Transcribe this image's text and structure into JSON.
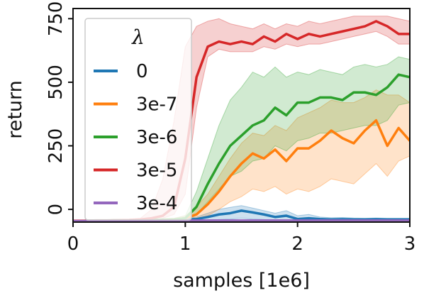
{
  "chart_data": {
    "type": "line",
    "xlabel": "samples [1e6]",
    "ylabel": "return",
    "xlim": [
      0,
      3
    ],
    "ylim": [
      -50,
      790
    ],
    "xticks": [
      "0",
      "1",
      "2",
      "3"
    ],
    "yticks": [
      "0",
      "250",
      "500",
      "750"
    ],
    "grid": false,
    "legend": {
      "title": "λ",
      "placement": "top-left"
    },
    "series": [
      {
        "name": "0",
        "color": "#1f77b4",
        "x": [
          0,
          0.1,
          0.2,
          0.3,
          0.4,
          0.5,
          0.6,
          0.7,
          0.8,
          0.9,
          1.0,
          1.1,
          1.2,
          1.3,
          1.4,
          1.5,
          1.6,
          1.7,
          1.8,
          1.9,
          2.0,
          2.1,
          2.2,
          2.3,
          2.4,
          2.5,
          2.6,
          2.7,
          2.8,
          2.9,
          3.0
        ],
        "y": [
          -45,
          -45,
          -44,
          -44,
          -43,
          -43,
          -42,
          -42,
          -41,
          -41,
          -40,
          -38,
          -30,
          -20,
          -15,
          -5,
          -12,
          -20,
          -30,
          -25,
          -38,
          -35,
          -38,
          -40,
          -39,
          -40,
          -40,
          -39,
          -40,
          -40,
          -40
        ],
        "lower": [
          -48,
          -48,
          -48,
          -48,
          -47,
          -47,
          -47,
          -47,
          -46,
          -46,
          -45,
          -44,
          -42,
          -40,
          -38,
          -35,
          -38,
          -40,
          -42,
          -42,
          -44,
          -44,
          -44,
          -44,
          -44,
          -44,
          -44,
          -44,
          -44,
          -44,
          -44
        ],
        "upper": [
          -42,
          -42,
          -40,
          -40,
          -39,
          -39,
          -38,
          -38,
          -37,
          -36,
          -33,
          -30,
          -15,
          0,
          8,
          15,
          5,
          -5,
          -15,
          -5,
          -25,
          -20,
          -30,
          -33,
          -32,
          -34,
          -35,
          -34,
          -35,
          -35,
          -35
        ]
      },
      {
        "name": "3e-7",
        "color": "#ff7f0e",
        "x": [
          0,
          0.1,
          0.2,
          0.3,
          0.4,
          0.5,
          0.6,
          0.7,
          0.8,
          0.9,
          1.0,
          1.1,
          1.2,
          1.3,
          1.4,
          1.5,
          1.6,
          1.7,
          1.8,
          1.9,
          2.0,
          2.1,
          2.2,
          2.3,
          2.4,
          2.5,
          2.6,
          2.7,
          2.8,
          2.9,
          3.0
        ],
        "y": [
          -45,
          -45,
          -44,
          -44,
          -43,
          -43,
          -42,
          -42,
          -41,
          -40,
          -35,
          -20,
          20,
          70,
          130,
          180,
          220,
          200,
          235,
          190,
          240,
          240,
          270,
          310,
          280,
          260,
          310,
          350,
          250,
          320,
          270
        ],
        "lower": [
          -48,
          -48,
          -48,
          -48,
          -47,
          -47,
          -46,
          -46,
          -45,
          -45,
          -44,
          -40,
          -25,
          0,
          30,
          50,
          80,
          70,
          90,
          60,
          80,
          70,
          90,
          120,
          110,
          100,
          140,
          180,
          130,
          190,
          210
        ],
        "upper": [
          -42,
          -42,
          -40,
          -40,
          -39,
          -39,
          -38,
          -38,
          -37,
          -35,
          -25,
          10,
          60,
          130,
          200,
          260,
          300,
          290,
          330,
          310,
          360,
          380,
          400,
          430,
          420,
          420,
          440,
          470,
          450,
          450,
          420
        ]
      },
      {
        "name": "3e-6",
        "color": "#2ca02c",
        "x": [
          0,
          0.1,
          0.2,
          0.3,
          0.4,
          0.5,
          0.6,
          0.7,
          0.8,
          0.9,
          1.0,
          1.1,
          1.2,
          1.3,
          1.4,
          1.5,
          1.6,
          1.7,
          1.8,
          1.9,
          2.0,
          2.1,
          2.2,
          2.3,
          2.4,
          2.5,
          2.6,
          2.7,
          2.8,
          2.9,
          3.0
        ],
        "y": [
          -45,
          -45,
          -44,
          -44,
          -43,
          -43,
          -42,
          -42,
          -41,
          -40,
          -35,
          10,
          100,
          180,
          250,
          290,
          330,
          350,
          400,
          370,
          420,
          420,
          440,
          440,
          430,
          460,
          460,
          450,
          480,
          530,
          520
        ],
        "lower": [
          -48,
          -48,
          -48,
          -48,
          -47,
          -47,
          -46,
          -46,
          -45,
          -44,
          -40,
          -20,
          30,
          80,
          130,
          150,
          190,
          200,
          250,
          230,
          270,
          280,
          300,
          300,
          310,
          320,
          330,
          330,
          350,
          410,
          420
        ],
        "upper": [
          -42,
          -42,
          -40,
          -40,
          -39,
          -39,
          -38,
          -38,
          -37,
          -35,
          -25,
          70,
          200,
          330,
          430,
          480,
          540,
          520,
          560,
          520,
          540,
          530,
          550,
          540,
          530,
          560,
          570,
          560,
          570,
          600,
          590
        ]
      },
      {
        "name": "3e-5",
        "color": "#d62728",
        "x": [
          0,
          0.1,
          0.2,
          0.3,
          0.4,
          0.5,
          0.6,
          0.7,
          0.8,
          0.9,
          1.0,
          1.1,
          1.2,
          1.3,
          1.4,
          1.5,
          1.6,
          1.7,
          1.8,
          1.9,
          2.0,
          2.1,
          2.2,
          2.3,
          2.4,
          2.5,
          2.6,
          2.7,
          2.8,
          2.9,
          3.0
        ],
        "y": [
          -45,
          -45,
          -44,
          -44,
          -43,
          -42,
          -40,
          -35,
          -25,
          10,
          200,
          520,
          640,
          660,
          650,
          660,
          650,
          680,
          660,
          690,
          670,
          690,
          680,
          690,
          700,
          710,
          720,
          740,
          720,
          690,
          690
        ],
        "lower": [
          -48,
          -48,
          -48,
          -48,
          -47,
          -46,
          -45,
          -42,
          -35,
          -20,
          60,
          400,
          600,
          630,
          620,
          620,
          620,
          640,
          630,
          650,
          640,
          650,
          650,
          660,
          670,
          680,
          690,
          700,
          680,
          650,
          650
        ],
        "upper": [
          -42,
          -42,
          -40,
          -40,
          -39,
          -38,
          -35,
          0,
          120,
          350,
          640,
          720,
          740,
          750,
          730,
          720,
          710,
          730,
          710,
          730,
          720,
          740,
          730,
          740,
          750,
          760,
          760,
          760,
          760,
          750,
          740
        ]
      },
      {
        "name": "3e-4",
        "color": "#9467bd",
        "x": [
          0,
          0.1,
          0.2,
          0.3,
          0.4,
          0.5,
          0.6,
          0.7,
          0.8,
          0.9,
          1.0,
          1.1,
          1.2,
          1.3,
          1.4,
          1.5,
          1.6,
          1.7,
          1.8,
          1.9,
          2.0,
          2.1,
          2.2,
          2.3,
          2.4,
          2.5,
          2.6,
          2.7,
          2.8,
          2.9,
          3.0
        ],
        "y": [
          -46,
          -46,
          -45,
          -45,
          -45,
          -45,
          -44,
          -44,
          -44,
          -44,
          -44,
          -44,
          -44,
          -44,
          -44,
          -44,
          -44,
          -44,
          -44,
          -44,
          -44,
          -44,
          -44,
          -44,
          -44,
          -44,
          -44,
          -44,
          -44,
          -44,
          -44
        ],
        "lower": [
          -48,
          -48,
          -48,
          -48,
          -48,
          -48,
          -48,
          -48,
          -48,
          -48,
          -48,
          -48,
          -48,
          -48,
          -48,
          -48,
          -48,
          -48,
          -48,
          -48,
          -48,
          -48,
          -48,
          -48,
          -48,
          -48,
          -48,
          -48,
          -48,
          -48,
          -48
        ],
        "upper": [
          -44,
          -44,
          -43,
          -43,
          -42,
          -42,
          -41,
          -41,
          -41,
          -41,
          -41,
          -41,
          -41,
          -41,
          -41,
          -41,
          -41,
          -41,
          -41,
          -41,
          -41,
          -41,
          -41,
          -41,
          -41,
          -41,
          -41,
          -41,
          -41,
          -41,
          -41
        ]
      }
    ]
  }
}
